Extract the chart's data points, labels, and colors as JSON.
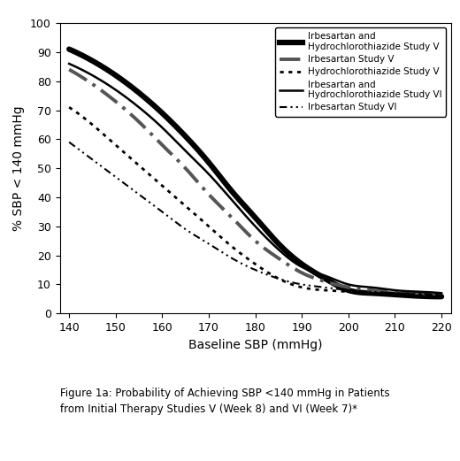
{
  "title": "",
  "xlabel": "Baseline SBP (mmHg)",
  "ylabel": "% SBP < 140 mmHg",
  "xlim": [
    138,
    222
  ],
  "ylim": [
    0,
    100
  ],
  "xticks": [
    140,
    150,
    160,
    170,
    180,
    190,
    200,
    210,
    220
  ],
  "yticks": [
    0,
    10,
    20,
    30,
    40,
    50,
    60,
    70,
    80,
    90,
    100
  ],
  "caption": "Figure 1a: Probability of Achieving SBP <140 mmHg in Patients\nfrom Initial Therapy Studies V (Week 8) and VI (Week 7)*",
  "series": [
    {
      "label": "Irbesartan and\n     Hydrochlorothiazide Study V",
      "color": "#000000",
      "linewidth": 4.5,
      "linestyle": "solid",
      "x": [
        140,
        145,
        150,
        155,
        160,
        165,
        170,
        175,
        180,
        185,
        190,
        195,
        200,
        205,
        210,
        215,
        220
      ],
      "y": [
        91,
        87,
        82,
        76,
        69,
        61,
        52,
        42,
        33,
        24,
        17,
        12,
        8,
        7,
        6.5,
        6,
        5.8
      ]
    },
    {
      "label": "Irbesartan Study V",
      "color": "#666666",
      "linewidth": 2.5,
      "linestyle": "dashdot_heavy",
      "x": [
        140,
        145,
        150,
        155,
        160,
        165,
        170,
        175,
        180,
        185,
        190,
        195,
        200,
        205,
        210,
        215,
        220
      ],
      "y": [
        84,
        79,
        73,
        66,
        58,
        50,
        41,
        33,
        25,
        19,
        14,
        11,
        9,
        8,
        7.5,
        7,
        6.8
      ]
    },
    {
      "label": "Hydrochlorothiazide Study V",
      "color": "#000000",
      "linewidth": 2.0,
      "linestyle": "densely_dotted",
      "x": [
        140,
        145,
        150,
        155,
        160,
        165,
        170,
        175,
        180,
        185,
        190,
        195,
        200,
        205,
        210,
        215,
        220
      ],
      "y": [
        71,
        65,
        58,
        51,
        44,
        37,
        30,
        23,
        17,
        12,
        9,
        8,
        7.5,
        7,
        6.8,
        6.5,
        6.2
      ]
    },
    {
      "label": "Irbesartan and\n     Hydrochlorothiazide Study VI",
      "color": "#000000",
      "linewidth": 2.0,
      "linestyle": "solid",
      "x": [
        140,
        145,
        150,
        155,
        160,
        165,
        170,
        175,
        180,
        185,
        190,
        195,
        200,
        205,
        210,
        215,
        220
      ],
      "y": [
        86,
        82,
        77,
        71,
        64,
        56,
        48,
        39,
        30,
        22,
        16,
        13,
        10,
        9,
        8,
        7.5,
        7
      ]
    },
    {
      "label": "Irbesartan Study VI",
      "color": "#000000",
      "linewidth": 1.5,
      "linestyle": "dashdotdotted",
      "x": [
        140,
        145,
        150,
        155,
        160,
        165,
        170,
        175,
        180,
        185,
        190,
        195,
        200,
        205,
        210,
        215,
        220
      ],
      "y": [
        59,
        53,
        47,
        41,
        35,
        29,
        24,
        19,
        15,
        12,
        10,
        9,
        8,
        7.5,
        7,
        6.8,
        6.5
      ]
    }
  ]
}
